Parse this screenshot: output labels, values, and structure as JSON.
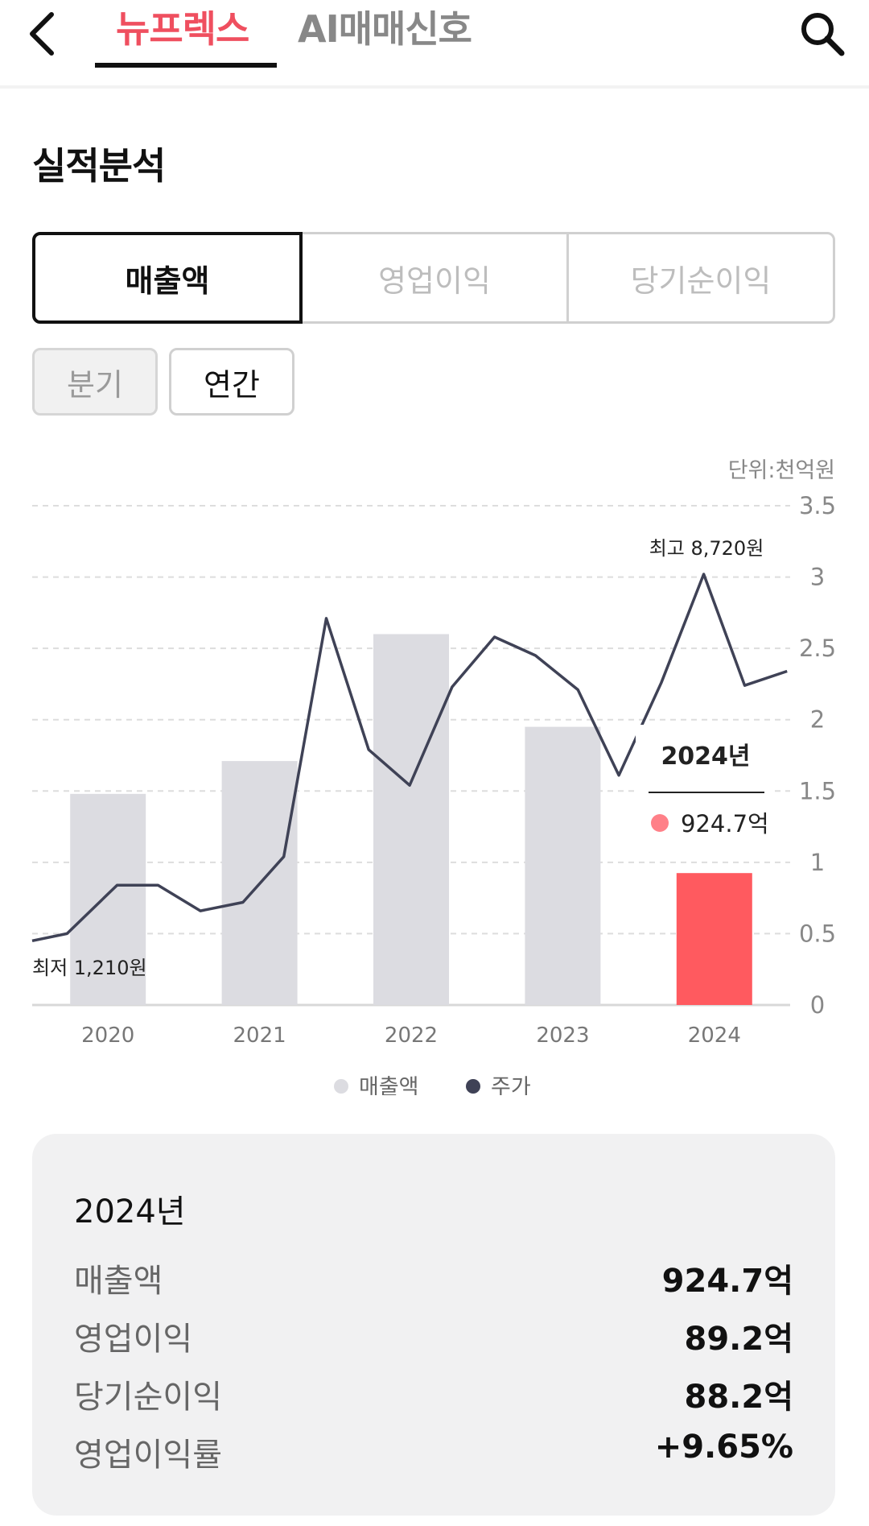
{
  "header": {
    "tabs": [
      {
        "label": "뉴프렉스",
        "active": true
      },
      {
        "label": "AI매매신호",
        "active": false
      }
    ],
    "icons": {
      "back": "chevron-left-icon",
      "search": "search-icon"
    },
    "accent_color": "#ef4f5f"
  },
  "section_title": "실적분석",
  "metric_tabs": [
    {
      "label": "매출액",
      "active": true
    },
    {
      "label": "영업이익",
      "active": false
    },
    {
      "label": "당기순이익",
      "active": false
    }
  ],
  "period_tabs": [
    {
      "label": "분기",
      "active": false
    },
    {
      "label": "연간",
      "active": true
    }
  ],
  "chart_data": {
    "type": "bar+line",
    "unit": "단위:천억원",
    "categories": [
      "2020",
      "2021",
      "2022",
      "2023",
      "2024"
    ],
    "bar_series": {
      "name": "매출액",
      "values": [
        1.48,
        1.71,
        2.6,
        1.95,
        0.9247
      ],
      "color": "#dcdce1",
      "highlight_color": "#ff5a5f",
      "highlight_index": 4
    },
    "line_series": {
      "name": "주가",
      "color": "#3f4256",
      "values": [
        0.45,
        0.5,
        0.84,
        0.84,
        0.66,
        0.72,
        1.04,
        2.71,
        1.79,
        1.54,
        2.23,
        2.58,
        2.45,
        2.21,
        1.61,
        2.26,
        3.02,
        2.24,
        2.34
      ],
      "x": [
        -0.5,
        -0.27,
        0.06,
        0.33,
        0.61,
        0.89,
        1.16,
        1.44,
        1.72,
        1.99,
        2.27,
        2.55,
        2.82,
        3.1,
        3.37,
        3.65,
        3.93,
        4.2,
        4.48
      ]
    },
    "y_ticks": [
      "3.5",
      "3",
      "2.5",
      "2",
      "1.5",
      "1",
      "0.5",
      "0"
    ],
    "ylim": [
      0,
      3.5
    ],
    "grid": true,
    "annotations": {
      "max_label": "최고 8,720원",
      "min_label": "최저 1,210원"
    },
    "tooltip": {
      "title": "2024년",
      "value": "924.7억"
    },
    "legend": [
      {
        "label": "매출액",
        "color": "#dcdce1"
      },
      {
        "label": "주가",
        "color": "#3f4256"
      }
    ],
    "legend_position": "bottom"
  },
  "summary": {
    "title": "2024년",
    "rows": [
      {
        "label": "매출액",
        "value": "924.7억"
      },
      {
        "label": "영업이익",
        "value": "89.2억"
      },
      {
        "label": "당기순이익",
        "value": "88.2억"
      },
      {
        "label": "영업이익률",
        "value": "+9.65%"
      }
    ]
  }
}
